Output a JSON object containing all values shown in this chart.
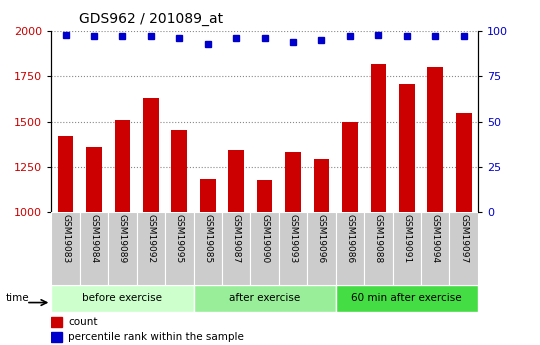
{
  "title": "GDS962 / 201089_at",
  "samples": [
    "GSM19083",
    "GSM19084",
    "GSM19089",
    "GSM19092",
    "GSM19095",
    "GSM19085",
    "GSM19087",
    "GSM19090",
    "GSM19093",
    "GSM19096",
    "GSM19086",
    "GSM19088",
    "GSM19091",
    "GSM19094",
    "GSM19097"
  ],
  "counts": [
    1420,
    1360,
    1510,
    1630,
    1455,
    1185,
    1345,
    1175,
    1330,
    1295,
    1500,
    1820,
    1710,
    1800,
    1545
  ],
  "percentile_ranks": [
    98,
    97,
    97,
    97,
    96,
    93,
    96,
    96,
    94,
    95,
    97,
    98,
    97,
    97,
    97
  ],
  "ylim_left": [
    1000,
    2000
  ],
  "ylim_right": [
    0,
    100
  ],
  "yticks_left": [
    1000,
    1250,
    1500,
    1750,
    2000
  ],
  "yticks_right": [
    0,
    25,
    50,
    75,
    100
  ],
  "groups": [
    {
      "label": "before exercise",
      "start": 0,
      "end": 5,
      "color": "#ccffcc"
    },
    {
      "label": "after exercise",
      "start": 5,
      "end": 10,
      "color": "#99ee99"
    },
    {
      "label": "60 min after exercise",
      "start": 10,
      "end": 15,
      "color": "#44dd44"
    }
  ],
  "bar_color": "#cc0000",
  "dot_color": "#0000cc",
  "bar_width": 0.55,
  "tick_label_fontsize": 6.5,
  "title_fontsize": 10,
  "group_label_fontsize": 7.5,
  "legend_fontsize": 7.5,
  "left_tick_color": "#cc0000",
  "right_tick_color": "#0000cc",
  "grid_color": "#888888",
  "xlabel_area_color": "#cccccc",
  "bg_color": "#ffffff"
}
